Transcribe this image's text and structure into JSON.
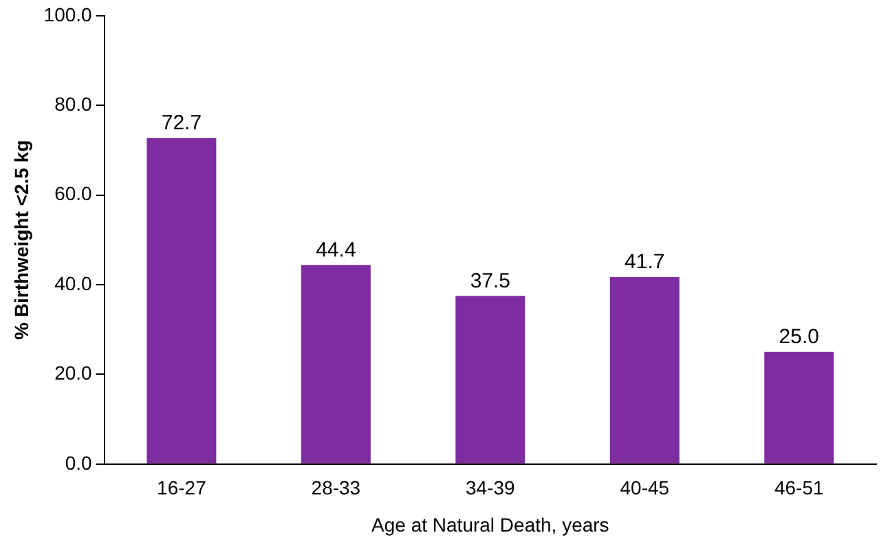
{
  "chart_data": {
    "type": "bar",
    "xlabel": "Age at Natural Death, years",
    "ylabel": "% Birthweight <2.5 kg",
    "categories": [
      "16-27",
      "28-33",
      "34-39",
      "40-45",
      "46-51"
    ],
    "values": [
      72.7,
      44.4,
      37.5,
      41.7,
      25.0
    ],
    "value_labels": [
      "72.7",
      "44.4",
      "37.5",
      "41.7",
      "25.0"
    ],
    "color": "#7f2ca0",
    "ylim": [
      0,
      100
    ],
    "yticks": [
      {
        "value": 0,
        "label": "0.0"
      },
      {
        "value": 20,
        "label": "20.0"
      },
      {
        "value": 40,
        "label": "40.0"
      },
      {
        "value": 60,
        "label": "60.0"
      },
      {
        "value": 80,
        "label": "80.0"
      },
      {
        "value": 100,
        "label": "100.0"
      }
    ],
    "grid": false,
    "legend": false
  }
}
